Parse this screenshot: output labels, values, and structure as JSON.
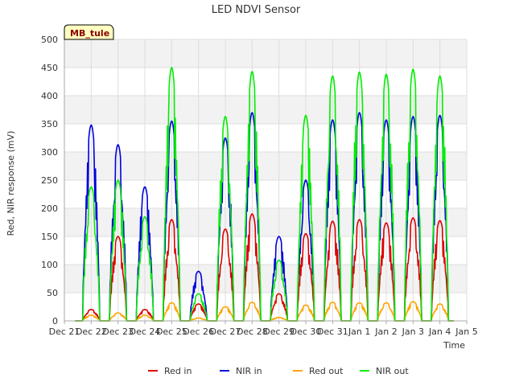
{
  "chart_data": {
    "type": "line",
    "title": "LED NDVI Sensor",
    "xlabel": "Time",
    "ylabel": "Red, NIR response (mV)",
    "ylim": [
      0,
      500
    ],
    "yticks": [
      0,
      50,
      100,
      150,
      200,
      250,
      300,
      350,
      400,
      450,
      500
    ],
    "xlim_days": [
      0,
      15
    ],
    "xticks": [
      "Dec 21",
      "Dec 22",
      "Dec 23",
      "Dec 24",
      "Dec 25",
      "Dec 26",
      "Dec 27",
      "Dec 28",
      "Dec 29",
      "Dec 30",
      "Dec 31",
      "Jan 1",
      "Jan 2",
      "Jan 3",
      "Jan 4",
      "Jan 5"
    ],
    "grid": true,
    "legend": "bottom",
    "badge": "MB_tule",
    "series": [
      {
        "name": "Red in",
        "color": "#dd0000",
        "peaks": [
          {
            "day": "Dec 22",
            "peak": 20
          },
          {
            "day": "Dec 23",
            "peak": 150
          },
          {
            "day": "Dec 24",
            "peak": 20
          },
          {
            "day": "Dec 25",
            "peak": 180
          },
          {
            "day": "Dec 26",
            "peak": 30
          },
          {
            "day": "Dec 27",
            "peak": 163
          },
          {
            "day": "Dec 28",
            "peak": 190
          },
          {
            "day": "Dec 29",
            "peak": 48
          },
          {
            "day": "Dec 30",
            "peak": 155
          },
          {
            "day": "Dec 31",
            "peak": 177
          },
          {
            "day": "Jan 1",
            "peak": 180
          },
          {
            "day": "Jan 2",
            "peak": 174
          },
          {
            "day": "Jan 3",
            "peak": 183
          },
          {
            "day": "Jan 4",
            "peak": 178
          }
        ]
      },
      {
        "name": "NIR in",
        "color": "#0000dd",
        "peaks": [
          {
            "day": "Dec 22",
            "peak": 348
          },
          {
            "day": "Dec 23",
            "peak": 313
          },
          {
            "day": "Dec 24",
            "peak": 238
          },
          {
            "day": "Dec 25",
            "peak": 355
          },
          {
            "day": "Dec 26",
            "peak": 88
          },
          {
            "day": "Dec 27",
            "peak": 325
          },
          {
            "day": "Dec 28",
            "peak": 370
          },
          {
            "day": "Dec 29",
            "peak": 150
          },
          {
            "day": "Dec 30",
            "peak": 250
          },
          {
            "day": "Dec 31",
            "peak": 357
          },
          {
            "day": "Jan 1",
            "peak": 370
          },
          {
            "day": "Jan 2",
            "peak": 357
          },
          {
            "day": "Jan 3",
            "peak": 363
          },
          {
            "day": "Jan 4",
            "peak": 365
          }
        ]
      },
      {
        "name": "Red out",
        "color": "#ffa500",
        "peaks": [
          {
            "day": "Dec 22",
            "peak": 10
          },
          {
            "day": "Dec 23",
            "peak": 14
          },
          {
            "day": "Dec 24",
            "peak": 10
          },
          {
            "day": "Dec 25",
            "peak": 32
          },
          {
            "day": "Dec 26",
            "peak": 5
          },
          {
            "day": "Dec 27",
            "peak": 25
          },
          {
            "day": "Dec 28",
            "peak": 33
          },
          {
            "day": "Dec 29",
            "peak": 6
          },
          {
            "day": "Dec 30",
            "peak": 28
          },
          {
            "day": "Dec 31",
            "peak": 33
          },
          {
            "day": "Jan 1",
            "peak": 32
          },
          {
            "day": "Jan 2",
            "peak": 32
          },
          {
            "day": "Jan 3",
            "peak": 34
          },
          {
            "day": "Jan 4",
            "peak": 30
          }
        ]
      },
      {
        "name": "NIR out",
        "color": "#00ee00",
        "peaks": [
          {
            "day": "Dec 22",
            "peak": 238
          },
          {
            "day": "Dec 23",
            "peak": 250
          },
          {
            "day": "Dec 24",
            "peak": 185
          },
          {
            "day": "Dec 25",
            "peak": 450
          },
          {
            "day": "Dec 26",
            "peak": 48
          },
          {
            "day": "Dec 27",
            "peak": 363
          },
          {
            "day": "Dec 28",
            "peak": 443
          },
          {
            "day": "Dec 29",
            "peak": 108
          },
          {
            "day": "Dec 30",
            "peak": 365
          },
          {
            "day": "Dec 31",
            "peak": 435
          },
          {
            "day": "Jan 1",
            "peak": 442
          },
          {
            "day": "Jan 2",
            "peak": 438
          },
          {
            "day": "Jan 3",
            "peak": 447
          },
          {
            "day": "Jan 4",
            "peak": 435
          }
        ]
      }
    ]
  }
}
